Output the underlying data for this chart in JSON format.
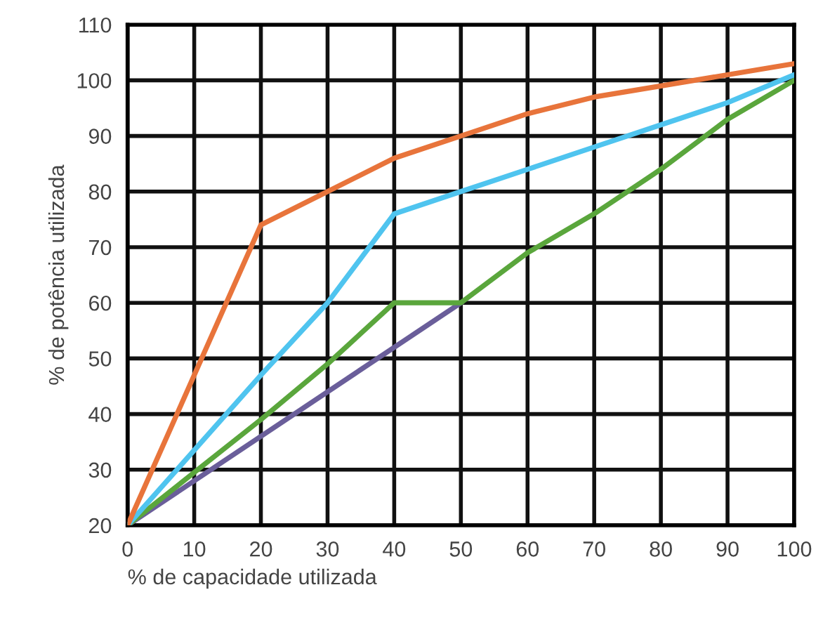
{
  "chart_data": {
    "type": "line",
    "xlabel": "% de capacidade utilizada",
    "ylabel": "% de potência utilizada",
    "xlim": [
      0,
      100
    ],
    "ylim": [
      20,
      110
    ],
    "xticks": [
      0,
      10,
      20,
      30,
      40,
      50,
      60,
      70,
      80,
      90,
      100
    ],
    "yticks": [
      20,
      30,
      40,
      50,
      60,
      70,
      80,
      90,
      100,
      110
    ],
    "grid": true,
    "marker": "none",
    "line_style": "solid",
    "series": [
      {
        "color": "#6a5e9a",
        "x": [
          0,
          50
        ],
        "values": [
          20,
          60
        ]
      },
      {
        "color": "#5aa63c",
        "x": [
          0,
          20,
          30,
          40,
          50,
          60,
          70,
          80,
          90,
          100
        ],
        "values": [
          20,
          39,
          49,
          60,
          60,
          69,
          76,
          84,
          93,
          100
        ]
      },
      {
        "color": "#4fc4ef",
        "x": [
          0,
          20,
          30,
          40,
          50,
          60,
          70,
          80,
          90,
          100
        ],
        "values": [
          20,
          47,
          60,
          76,
          80,
          84,
          88,
          92,
          96,
          101
        ]
      },
      {
        "color": "#e8743b",
        "x": [
          0,
          20,
          30,
          40,
          50,
          60,
          70,
          80,
          90,
          100
        ],
        "values": [
          20,
          74,
          80,
          86,
          90,
          94,
          97,
          99,
          101,
          103
        ]
      }
    ]
  }
}
